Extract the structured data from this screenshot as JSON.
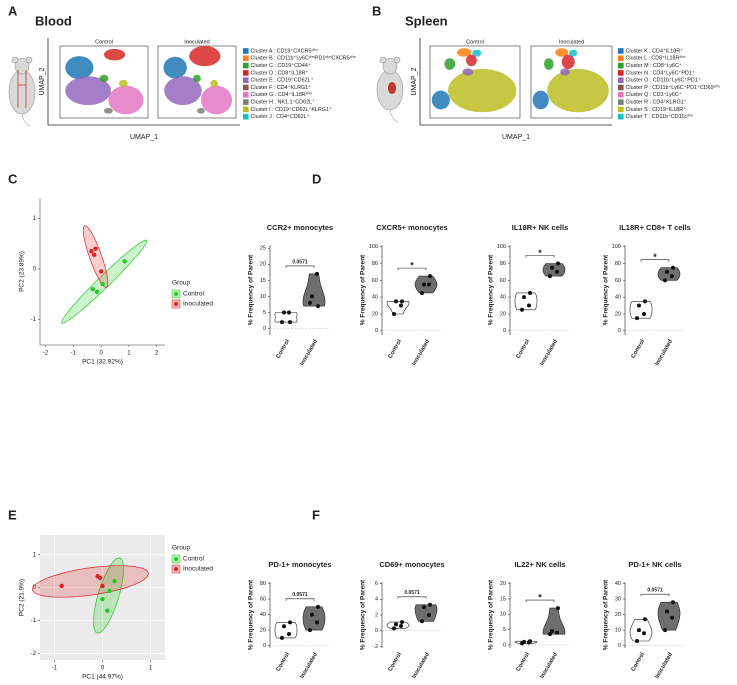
{
  "panel_labels": [
    "A",
    "B",
    "C",
    "D",
    "E",
    "F"
  ],
  "umap_panels": [
    {
      "title": "Blood",
      "subplot_titles": [
        "Control",
        "Inoculated"
      ],
      "xlabel": "UMAP_1",
      "ylabel": "UMAP_2",
      "legend": [
        {
          "name": "Cluster A : CD19⁺CXCR5ᵈⁱᵐ",
          "color": "#1f77b4"
        },
        {
          "name": "Cluster B : CD11b⁺Ly6CᵈⁱᵐPD1ᵈⁱᵐCXCR5ᵈⁱᵐ",
          "color": "#ff7f0e"
        },
        {
          "name": "Cluster C : CD19⁺CD44⁺",
          "color": "#2ca02c"
        },
        {
          "name": "Cluster D : CD8⁺IL18R⁺",
          "color": "#d62728"
        },
        {
          "name": "Cluster E : CD19⁺CD62L⁺",
          "color": "#9467bd"
        },
        {
          "name": "Cluster F : CD4⁺KLRG1⁺",
          "color": "#8c564b"
        },
        {
          "name": "Cluster G : CD4⁺IL18Rᵈⁱᵐ",
          "color": "#e377c2"
        },
        {
          "name": "Cluster H : NK1.1⁺CD62L⁺",
          "color": "#7f7f7f"
        },
        {
          "name": "Cluster I : CD19⁺CD62L⁺KLRG1⁺",
          "color": "#bcbd22"
        },
        {
          "name": "Cluster J : CD4⁺CD62L⁺",
          "color": "#17becf"
        }
      ]
    },
    {
      "title": "Spleen",
      "subplot_titles": [
        "Control",
        "Inoculated"
      ],
      "xlabel": "UMAP_1",
      "ylabel": "UMAP_2",
      "legend": [
        {
          "name": "Cluster K : CD4⁺IL18R⁺",
          "color": "#1f77b4"
        },
        {
          "name": "Cluster L : CD8⁺IL18Rᵈⁱᵐ",
          "color": "#ff7f0e"
        },
        {
          "name": "Cluster M : CD8⁺Ly6C⁺",
          "color": "#2ca02c"
        },
        {
          "name": "Cluster N : CD4⁺Ly6C⁺PD1⁺",
          "color": "#d62728"
        },
        {
          "name": "Cluster O : CD11b⁺Ly6C⁺PD1⁺",
          "color": "#9467bd"
        },
        {
          "name": "Cluster P : CD11b⁺Ly6C⁺PD1⁺CD69ᵈⁱᵐ",
          "color": "#8c564b"
        },
        {
          "name": "Cluster Q : CD3⁺Ly6C⁺",
          "color": "#e377c2"
        },
        {
          "name": "Cluster R : CD4⁺KLRG1⁺",
          "color": "#7f7f7f"
        },
        {
          "name": "Cluster S : CD19⁺IL18R⁺",
          "color": "#bcbd22"
        },
        {
          "name": "Cluster T : CD11b⁺CD11cᵈⁱᵐ",
          "color": "#17becf"
        }
      ]
    }
  ],
  "chart_data": [
    {
      "type": "scatter",
      "xlabel": "PC1 (32.92%)",
      "ylabel": "PC2 (23.89%)",
      "xlim": [
        -2.2,
        2.3
      ],
      "ylim": [
        -1.5,
        1.4
      ],
      "xticks": [
        -2,
        -1,
        0,
        1,
        2
      ],
      "yticks": [
        -1,
        0,
        1
      ],
      "legend_title": "Group",
      "background": "#ffffff",
      "grid": false,
      "ellipse": true,
      "series": [
        {
          "name": "Control",
          "color": "#22cc22",
          "x": [
            0.85,
            0.05,
            -0.15,
            -0.3
          ],
          "values": [
            0.15,
            -0.3,
            -0.45,
            -0.4
          ]
        },
        {
          "name": "Inoculated",
          "color": "#dd2222",
          "x": [
            -0.35,
            -0.2,
            -0.25,
            0.0
          ],
          "values": [
            0.35,
            0.4,
            0.28,
            -0.05
          ]
        }
      ]
    },
    {
      "type": "violin",
      "title": "CCR2+ monocytes",
      "ylabel": "% Frequency of Parent",
      "categories": [
        "Control",
        "Inoculated"
      ],
      "colors": [
        "#ffffff",
        "#6e6e6e"
      ],
      "values": [
        [
          2,
          5,
          5,
          2
        ],
        [
          8,
          17,
          10,
          7
        ]
      ],
      "ylim": [
        -2,
        26
      ],
      "yticks": [
        0,
        5,
        10,
        15,
        20,
        25
      ],
      "bracket_label": "0.0571"
    },
    {
      "type": "violin",
      "title": "CXCR5+ monocytes",
      "ylabel": "% Frequency of Parent",
      "categories": [
        "Control",
        "Inoculated"
      ],
      "colors": [
        "#ffffff",
        "#6e6e6e"
      ],
      "values": [
        [
          20,
          30,
          35,
          35
        ],
        [
          45,
          55,
          55,
          65
        ]
      ],
      "ylim": [
        -5,
        102
      ],
      "yticks": [
        0,
        20,
        40,
        60,
        80,
        100
      ],
      "bracket_label": "*"
    },
    {
      "type": "violin",
      "title": "IL18R+ NK cells",
      "ylabel": "% Frequency of Parent",
      "categories": [
        "Control",
        "Inoculated"
      ],
      "colors": [
        "#ffffff",
        "#6e6e6e"
      ],
      "values": [
        [
          25,
          30,
          40,
          45
        ],
        [
          65,
          70,
          75,
          80
        ]
      ],
      "ylim": [
        -5,
        102
      ],
      "yticks": [
        0,
        20,
        40,
        60,
        80,
        100
      ],
      "bracket_label": "*"
    },
    {
      "type": "violin",
      "title": "IL18R+ CD8+ T cells",
      "ylabel": "% Frequency of Parent",
      "categories": [
        "Control",
        "Inoculated"
      ],
      "colors": [
        "#ffffff",
        "#6e6e6e"
      ],
      "values": [
        [
          15,
          20,
          30,
          35
        ],
        [
          60,
          65,
          70,
          75
        ]
      ],
      "ylim": [
        -5,
        102
      ],
      "yticks": [
        0,
        20,
        40,
        60,
        80,
        100
      ],
      "bracket_label": "*"
    },
    {
      "type": "scatter",
      "xlabel": "PC1 (44.97%)",
      "ylabel": "PC2 (21.9%)",
      "xlim": [
        -1.3,
        1.3
      ],
      "ylim": [
        -2.2,
        1.6
      ],
      "xticks": [
        -1,
        0,
        1
      ],
      "yticks": [
        -2,
        -1,
        0,
        1
      ],
      "legend_title": "Group",
      "background": "#ebebeb",
      "grid": true,
      "ellipse": true,
      "series": [
        {
          "name": "Control",
          "color": "#22cc22",
          "x": [
            0.25,
            0.15,
            0.0,
            0.1
          ],
          "values": [
            0.2,
            -0.1,
            -0.35,
            -0.7
          ]
        },
        {
          "name": "Inoculated",
          "color": "#dd2222",
          "x": [
            -0.85,
            -0.1,
            -0.05,
            0.0
          ],
          "values": [
            0.05,
            0.35,
            0.3,
            0.05
          ]
        }
      ]
    },
    {
      "type": "violin",
      "title": "PD-1+ monocytes",
      "ylabel": "% Frequency of Parent",
      "categories": [
        "Control",
        "Inoculated"
      ],
      "colors": [
        "#ffffff",
        "#6e6e6e"
      ],
      "values": [
        [
          10,
          15,
          25,
          30
        ],
        [
          20,
          30,
          40,
          50
        ]
      ],
      "ylim": [
        -3,
        82
      ],
      "yticks": [
        0,
        20,
        40,
        60,
        80
      ],
      "bracket_label": "0.0571"
    },
    {
      "type": "violin",
      "title": "CD69+ monocytes",
      "ylabel": "% Frequency of Parent",
      "categories": [
        "Control",
        "Inoculated"
      ],
      "colors": [
        "#ffffff",
        "#6e6e6e"
      ],
      "values": [
        [
          0.3,
          0.6,
          0.8,
          1.1
        ],
        [
          1.2,
          2,
          3,
          3.3
        ]
      ],
      "ylim": [
        -2.2,
        6.2
      ],
      "yticks": [
        -2,
        0,
        2,
        4,
        6
      ],
      "bracket_label": "0.0571"
    },
    {
      "type": "violin",
      "title": "IL22+ NK cells",
      "ylabel": "% Frequency of Parent",
      "categories": [
        "Control",
        "Inoculated"
      ],
      "colors": [
        "#ffffff",
        "#6e6e6e"
      ],
      "values": [
        [
          0.5,
          0.8,
          1,
          1.2
        ],
        [
          3.5,
          4,
          4.5,
          12
        ]
      ],
      "ylim": [
        -1,
        20.5
      ],
      "yticks": [
        0,
        5,
        10,
        15,
        20
      ],
      "bracket_label": "*"
    },
    {
      "type": "violin",
      "title": "PD-1+ NK cells",
      "ylabel": "% Frequency of Parent",
      "categories": [
        "Control",
        "Inoculated"
      ],
      "colors": [
        "#ffffff",
        "#6e6e6e"
      ],
      "values": [
        [
          3,
          8,
          10,
          17
        ],
        [
          10,
          18,
          22,
          28
        ]
      ],
      "ylim": [
        -1.5,
        41
      ],
      "yticks": [
        0,
        10,
        20,
        30,
        40
      ],
      "bracket_label": "0.0571"
    }
  ]
}
